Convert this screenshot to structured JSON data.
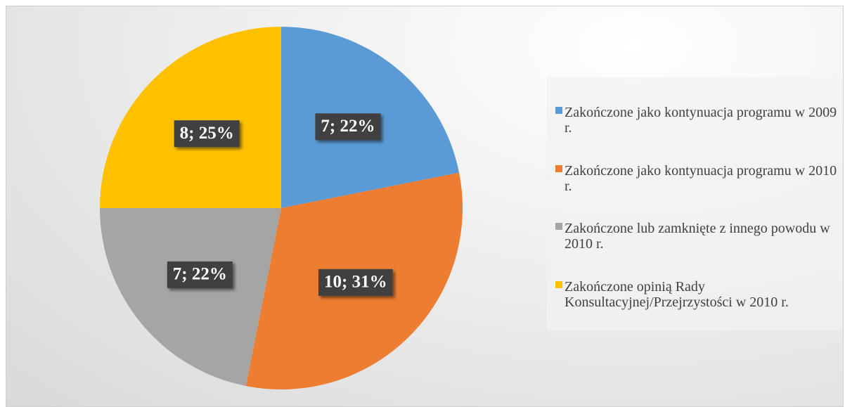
{
  "chart_data": {
    "type": "pie",
    "categories": [
      "Zakończone jako kontynuacja programu w 2009 r.",
      "Zakończone jako kontynuacja programu w 2010 r.",
      "Zakończone lub zamknięte z innego powodu w 2010 r.",
      "Zakończone opinią Rady Konsultacyjnej/Przejrzystości w 2010 r."
    ],
    "values": [
      7,
      10,
      7,
      8
    ],
    "value_labels": [
      "7; 22%",
      "10; 31%",
      "7; 22%",
      "8; 25%"
    ],
    "colors": [
      "#5b9bd5",
      "#ed7d31",
      "#a5a5a5",
      "#ffc000"
    ],
    "legend": "right"
  }
}
